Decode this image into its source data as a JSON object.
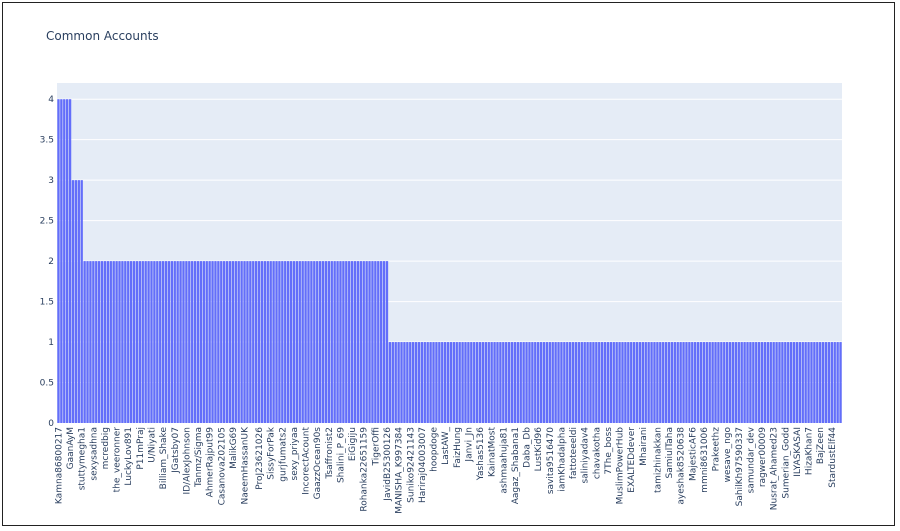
{
  "colors": {
    "plot_bg": "#e5ecf6",
    "bar": "#636efa",
    "grid": "#ffffff",
    "text": "#2a3f5f",
    "frame": "#222222"
  },
  "chart_data": {
    "type": "bar",
    "title": "Common Accounts",
    "xlabel": "",
    "ylabel": "",
    "ylim": [
      0,
      4.2
    ],
    "yticks": [
      0,
      0.5,
      1,
      1.5,
      2,
      2.5,
      3,
      3.5,
      4
    ],
    "ytick_labels": [
      "0",
      "0.5",
      "1",
      "1.5",
      "2",
      "2.5",
      "3",
      "3.5",
      "4"
    ],
    "grid": true,
    "legend": "none",
    "bar_count": 270,
    "segments": [
      {
        "value": 4,
        "count": 5
      },
      {
        "value": 3,
        "count": 4
      },
      {
        "value": 2,
        "count": 105
      },
      {
        "value": 1,
        "count": 156
      }
    ],
    "visible_tick_labels": [
      "Kamna86800217",
      "GaanAyM",
      "stuttymegha1",
      "sexysadhna",
      "mcredbig",
      "the_veeronner",
      "LuckyLov891",
      "P11mPraj",
      "U/Niyati",
      "Billiam_Shake",
      "JGatsby07",
      "ID/AlexJohnson",
      "Tanmz/Sigma",
      "AhmerRajput99",
      "Casanova202105",
      "MalikG69",
      "NaeemHassanUK",
      "ProJ23621026",
      "SissyForPak",
      "gurjfumats2",
      "sexy_priyaa",
      "IncorectAcount",
      "GaazzOcean90s",
      "Tsaffronist2",
      "Shalini_P_69",
      "EiGigiju",
      "Rohanka22651159",
      "TigerOffi",
      "JavidB25300126",
      "MANISHA_K997384",
      "Suniko92421143",
      "Hariraj04003007",
      "hoopdoge",
      "LastAW_",
      "FaizHung",
      "Janvi_Jn",
      "Yashas5136",
      "KainatMost",
      "ashmaahuja81",
      "Aagaz_Shabana1",
      "Daba_Db",
      "LustKid96",
      "savita9516470",
      "iamKhadalpha",
      "fattoteeeldi",
      "saliniyadav4",
      "chavakotha",
      "7The_boss",
      "MuslimPowerHub",
      "EXALTEDdever",
      "Mhairani",
      "tamizhinakkan",
      "SamiulTaha",
      "ayeshak8520638",
      "MajesticAF6",
      "mmni8631006",
      "Prakeethz",
      "wesave_ngo",
      "SahilKh97590337",
      "samundar_dev",
      "ragwer00009",
      "Nusrat_Ahamed23",
      "Sumerian_Godd",
      "ILYASKASAI",
      "HizaKhan7",
      "BajZeen",
      "StardustElf44"
    ]
  }
}
